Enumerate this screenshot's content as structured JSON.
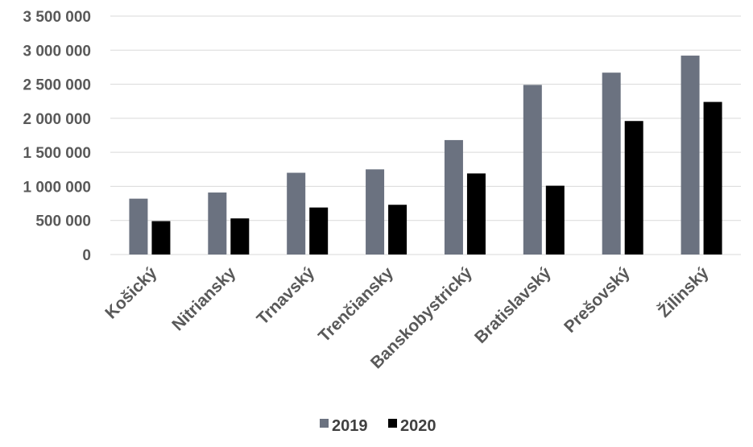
{
  "chart_data": {
    "type": "bar",
    "categories": [
      "Košický",
      "Nitriansky",
      "Trnavský",
      "Trenčiansky",
      "Banskobystrický",
      "Bratislavský",
      "Prešovský",
      "Žilinský"
    ],
    "series": [
      {
        "name": "2019",
        "color": "#6b7280",
        "values": [
          820000,
          910000,
          1200000,
          1250000,
          1680000,
          2490000,
          2670000,
          2920000
        ]
      },
      {
        "name": "2020",
        "color": "#000000",
        "values": [
          490000,
          530000,
          690000,
          730000,
          1190000,
          1010000,
          1960000,
          2240000
        ]
      }
    ],
    "yticks": [
      "0",
      "500 000",
      "1 000 000",
      "1 500 000",
      "2 000 000",
      "2 500 000",
      "3 000 000",
      "3 500 000"
    ],
    "ylim": [
      0,
      3500000
    ],
    "grid": true,
    "legend": "bottom-center"
  }
}
